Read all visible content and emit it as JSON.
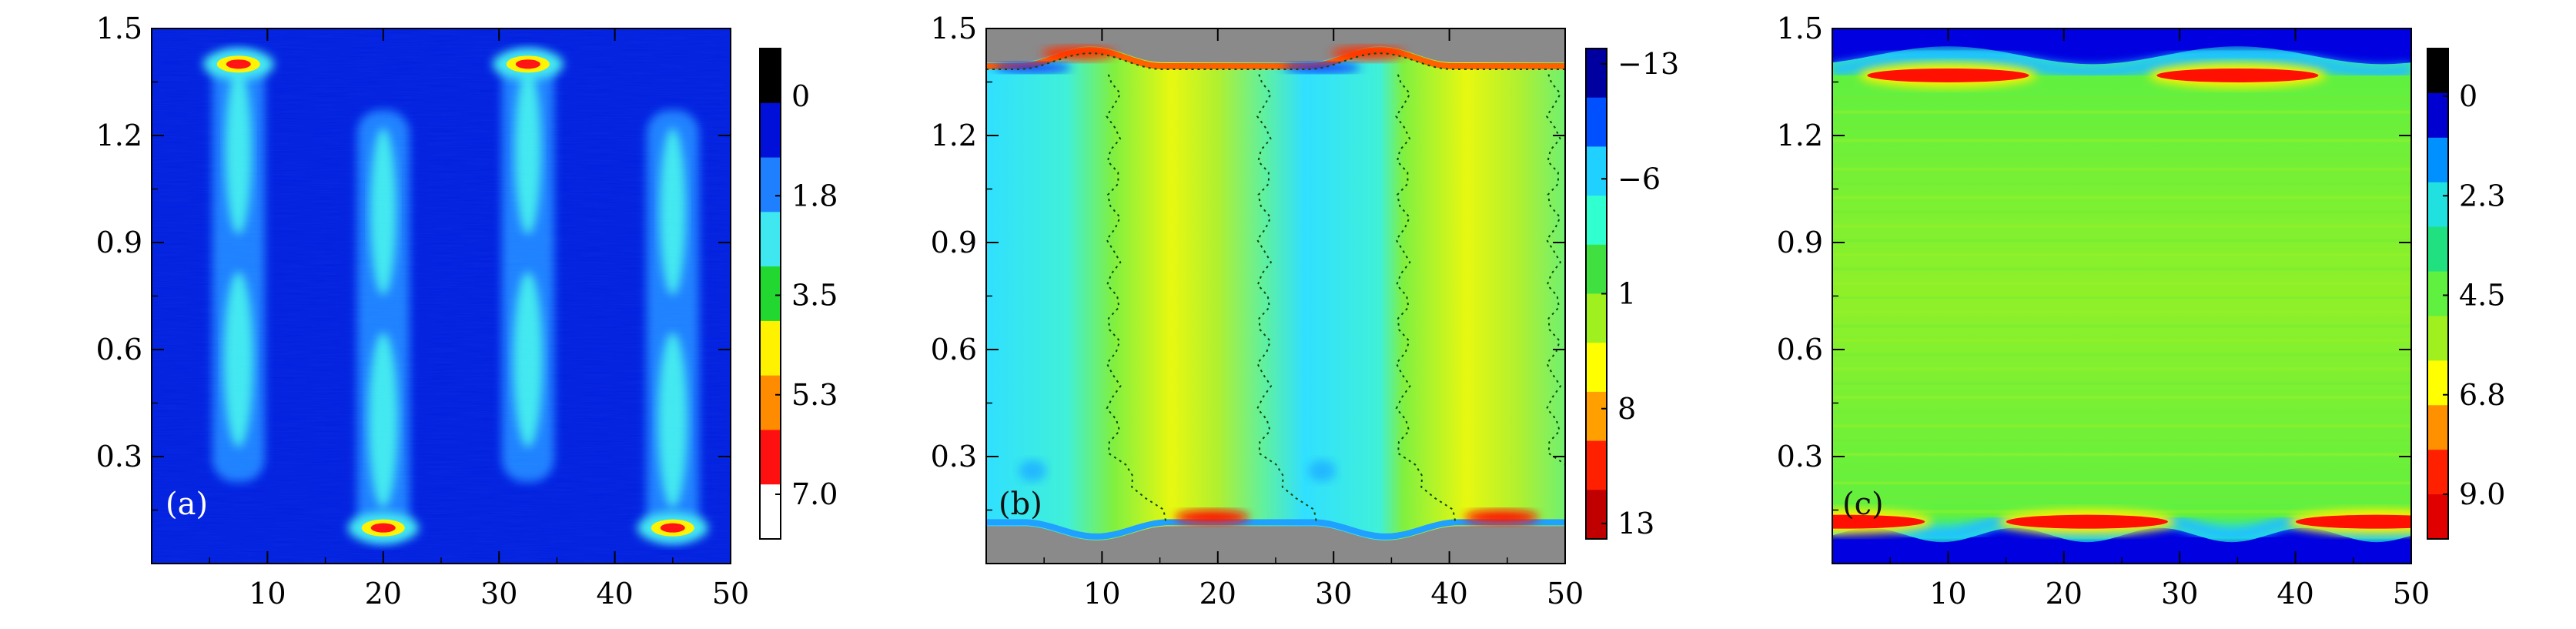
{
  "chart_data": [
    {
      "type": "heatmap",
      "panel_label": "(a)",
      "title": "",
      "xlabel": "",
      "ylabel": "",
      "xlim": [
        0,
        50
      ],
      "ylim": [
        0,
        1.5
      ],
      "x_ticks": [
        10,
        20,
        30,
        40,
        50
      ],
      "x_tick_labels": [
        "10",
        "20",
        "30",
        "40",
        "50"
      ],
      "y_ticks": [
        0.3,
        0.6,
        0.9,
        1.2,
        1.5
      ],
      "y_tick_labels": [
        "0.3",
        "0.6",
        "0.9",
        "1.2",
        "1.5"
      ],
      "colorbar": {
        "tick_labels": [
          "0",
          "1.8",
          "3.5",
          "5.3",
          "7.0"
        ],
        "colors": [
          "#000000",
          "#0010d8",
          "#1f80ff",
          "#3fe8f0",
          "#22d830",
          "#fff200",
          "#ff8c00",
          "#ff1010",
          "#ffffff"
        ]
      },
      "background_color": "#0020e0",
      "features": [
        {
          "x": 7.5,
          "y_range": [
            0.25,
            1.42
          ],
          "peak_y": 1.4
        },
        {
          "x": 20,
          "y_range": [
            0.08,
            1.25
          ],
          "peak_y": 0.1
        },
        {
          "x": 32.5,
          "y_range": [
            0.25,
            1.42
          ],
          "peak_y": 1.4
        },
        {
          "x": 45,
          "y_range": [
            0.08,
            1.25
          ],
          "peak_y": 0.1
        }
      ]
    },
    {
      "type": "heatmap",
      "panel_label": "(b)",
      "title": "",
      "xlabel": "",
      "ylabel": "",
      "xlim": [
        0,
        50
      ],
      "ylim": [
        0,
        1.5
      ],
      "x_ticks": [
        10,
        20,
        30,
        40,
        50
      ],
      "x_tick_labels": [
        "10",
        "20",
        "30",
        "40",
        "50"
      ],
      "y_ticks": [
        0.3,
        0.6,
        0.9,
        1.2,
        1.5
      ],
      "y_tick_labels": [
        "0.3",
        "0.6",
        "0.9",
        "1.2",
        "1.5"
      ],
      "colorbar": {
        "tick_labels": [
          "−13",
          "−6",
          "1",
          "8",
          "13"
        ],
        "colors": [
          "#0000a0",
          "#0050ff",
          "#20d0ff",
          "#30ffd0",
          "#40e040",
          "#a0f020",
          "#ffff00",
          "#ffa000",
          "#ff2000",
          "#c00000"
        ]
      },
      "outside_color": "#8a8a8a",
      "zero_contour_x": [
        11,
        24,
        36,
        49
      ]
    },
    {
      "type": "heatmap",
      "panel_label": "(c)",
      "title": "",
      "xlabel": "",
      "ylabel": "",
      "xlim": [
        0,
        50
      ],
      "ylim": [
        0,
        1.5
      ],
      "x_ticks": [
        10,
        20,
        30,
        40,
        50
      ],
      "x_tick_labels": [
        "10",
        "20",
        "30",
        "40",
        "50"
      ],
      "y_ticks": [
        0.3,
        0.6,
        0.9,
        1.2,
        1.5
      ],
      "y_tick_labels": [
        "0.3",
        "0.6",
        "0.9",
        "1.2",
        "1.5"
      ],
      "colorbar": {
        "tick_labels": [
          "0",
          "2.3",
          "4.5",
          "6.8",
          "9.0"
        ],
        "colors": [
          "#000000",
          "#0000d0",
          "#0090ff",
          "#20e0e0",
          "#20e080",
          "#60f040",
          "#a0f020",
          "#ffff00",
          "#ff9000",
          "#ff2000",
          "#e00000"
        ]
      },
      "background_color": "#80ee30",
      "hot_bands": [
        {
          "x_center": 10,
          "y": 1.39
        },
        {
          "x_center": 35,
          "y": 1.39
        },
        {
          "x_center": 22,
          "y": 0.1
        },
        {
          "x_center": 47,
          "y": 0.1
        },
        {
          "x_center": 1,
          "y": 0.1
        }
      ]
    }
  ]
}
